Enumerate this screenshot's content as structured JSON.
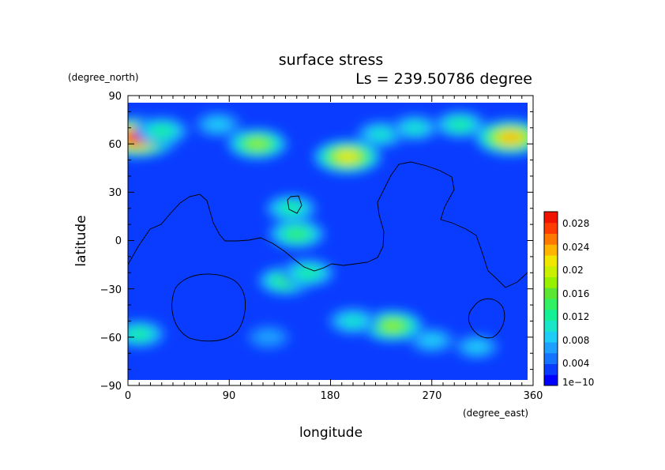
{
  "chart_data": {
    "type": "heatmap",
    "title": "surface stress",
    "subtitle": "Ls = 239.50786 degree",
    "xlabel": "longitude",
    "ylabel": "latitude",
    "xunit": "(degree_east)",
    "yunit": "(degree_north)",
    "xlim": [
      0,
      360
    ],
    "ylim": [
      -90,
      90
    ],
    "xticks": [
      "0",
      "90",
      "180",
      "270",
      "360"
    ],
    "yticks": [
      "90",
      "60",
      "30",
      "0",
      "−30",
      "−60",
      "−90"
    ],
    "colorbar": {
      "min": 0,
      "max": 0.03,
      "labels": [
        "1e−10",
        "0.004",
        "0.008",
        "0.012",
        "0.016",
        "0.02",
        "0.024",
        "0.028"
      ],
      "colors": [
        "#0000ff",
        "#0a3cff",
        "#1473ff",
        "#1ea0ff",
        "#1ecdf5",
        "#19e6c8",
        "#14f096",
        "#32f064",
        "#5ae632",
        "#96f000",
        "#c8f000",
        "#f0e600",
        "#ffb400",
        "#ff7800",
        "#ff3c00",
        "#f01400"
      ]
    },
    "hotspots": [
      {
        "lon": 8,
        "lat": 64,
        "value": 0.028
      },
      {
        "lon": 30,
        "lat": 68,
        "value": 0.012
      },
      {
        "lon": 115,
        "lat": 60,
        "value": 0.016
      },
      {
        "lon": 80,
        "lat": 72,
        "value": 0.008
      },
      {
        "lon": 195,
        "lat": 52,
        "value": 0.02
      },
      {
        "lon": 225,
        "lat": 66,
        "value": 0.01
      },
      {
        "lon": 255,
        "lat": 70,
        "value": 0.009
      },
      {
        "lon": 295,
        "lat": 72,
        "value": 0.011
      },
      {
        "lon": 340,
        "lat": 64,
        "value": 0.022
      },
      {
        "lon": 150,
        "lat": 4,
        "value": 0.014
      },
      {
        "lon": 145,
        "lat": 20,
        "value": 0.011
      },
      {
        "lon": 140,
        "lat": -25,
        "value": 0.013
      },
      {
        "lon": 160,
        "lat": -20,
        "value": 0.012
      },
      {
        "lon": 235,
        "lat": -53,
        "value": 0.017
      },
      {
        "lon": 200,
        "lat": -50,
        "value": 0.01
      },
      {
        "lon": 270,
        "lat": -62,
        "value": 0.008
      },
      {
        "lon": 310,
        "lat": -66,
        "value": 0.007
      },
      {
        "lon": 10,
        "lat": -58,
        "value": 0.011
      },
      {
        "lon": 125,
        "lat": -60,
        "value": 0.006
      }
    ]
  }
}
